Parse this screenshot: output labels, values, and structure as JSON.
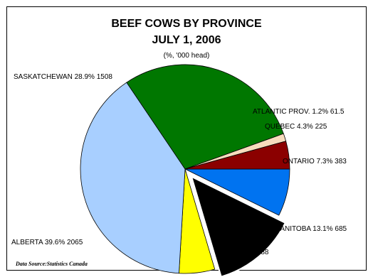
{
  "chart_data": {
    "type": "pie",
    "title": "BEEF COWS BY PROVINCE",
    "subtitle": "JULY 1, 2006",
    "units_note": "(%, '000 head)",
    "source": "Data Source:Statistics Canada",
    "slices": [
      {
        "label": "ONTARIO 7.3% 383",
        "category": "ONTARIO",
        "percent": 7.3,
        "value": 383,
        "color": "#0073f0",
        "exploded": false
      },
      {
        "label": "MANITOBA 13.1% 685",
        "category": "MANITOBA",
        "percent": 13.1,
        "value": 685,
        "color": "#000000",
        "exploded": true
      },
      {
        "label": "B.C. 5.5% 288",
        "category": "B.C.",
        "percent": 5.5,
        "value": 288,
        "color": "#ffff00",
        "exploded": false
      },
      {
        "label": "ALBERTA 39.6% 2065",
        "category": "ALBERTA",
        "percent": 39.6,
        "value": 2065,
        "color": "#a8cfff",
        "exploded": false
      },
      {
        "label": "SASKATCHEWAN 28.9% 1508",
        "category": "SASKATCHEWAN",
        "percent": 28.9,
        "value": 1508,
        "color": "#007700",
        "exploded": false
      },
      {
        "label": "ATLANTIC PROV. 1.2% 61.5",
        "category": "ATLANTIC PROV.",
        "percent": 1.2,
        "value": 61.5,
        "color": "#f7dcbd",
        "exploded": false
      },
      {
        "label": "QUEBEC 4.3% 225",
        "category": "QUEBEC",
        "percent": 4.3,
        "value": 225,
        "color": "#8b0000",
        "exploded": false
      }
    ]
  }
}
